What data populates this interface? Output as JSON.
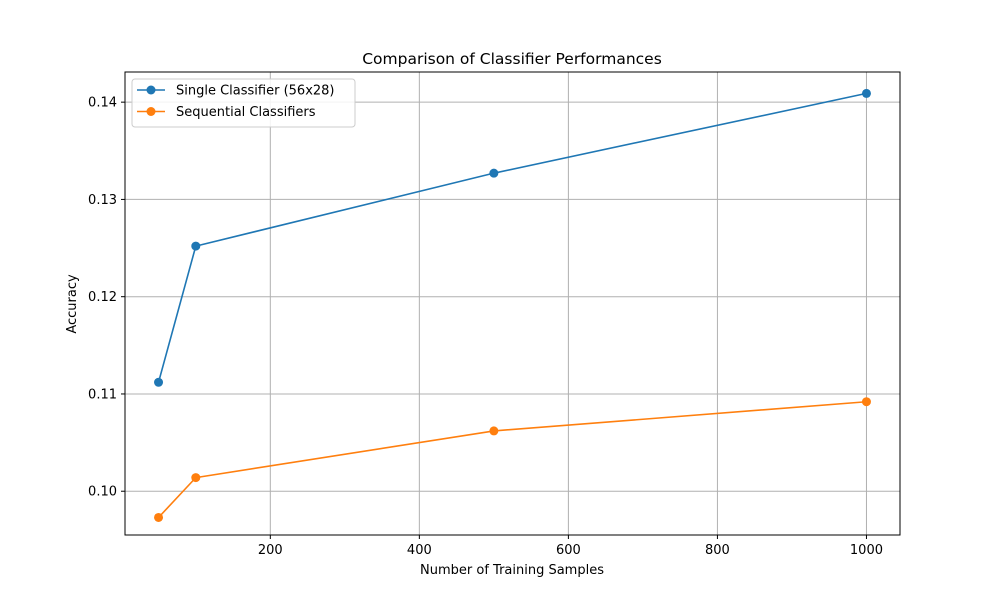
{
  "chart_data": {
    "type": "line",
    "title": "Comparison of Classifier Performances",
    "xlabel": "Number of Training Samples",
    "ylabel": "Accuracy",
    "x": [
      50,
      100,
      500,
      1000
    ],
    "xlim": [
      5,
      1045
    ],
    "ylim": [
      0.0955,
      0.1431
    ],
    "xticks": [
      200,
      400,
      600,
      800,
      1000
    ],
    "yticks": [
      0.1,
      0.11,
      0.12,
      0.13,
      0.14
    ],
    "xtick_labels": [
      "200",
      "400",
      "600",
      "800",
      "1000"
    ],
    "ytick_labels": [
      "0.10",
      "0.11",
      "0.12",
      "0.13",
      "0.14"
    ],
    "grid": true,
    "legend_position": "top-left",
    "series": [
      {
        "name": "Single Classifier (56x28)",
        "color": "#1f77b4",
        "marker": "circle",
        "values": [
          0.1112,
          0.1252,
          0.1327,
          0.1409
        ]
      },
      {
        "name": "Sequential Classifiers",
        "color": "#ff7f0e",
        "marker": "circle",
        "values": [
          0.0973,
          0.1014,
          0.1062,
          0.1092
        ]
      }
    ]
  }
}
